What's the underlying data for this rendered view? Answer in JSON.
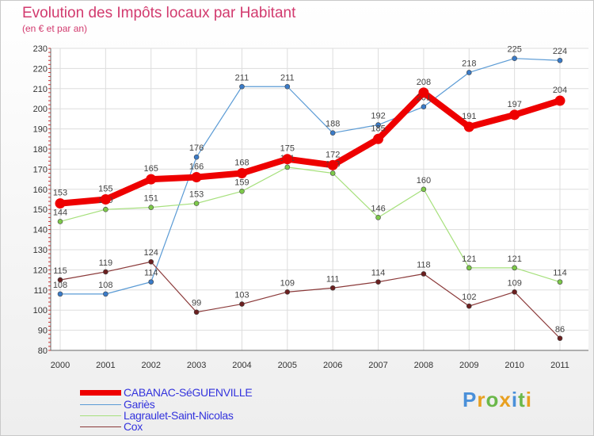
{
  "chart_data": {
    "type": "line",
    "title": "Evolution des Impôts locaux par Habitant",
    "subtitle": "(en € et par an)",
    "xlabel": "",
    "ylabel": "",
    "categories": [
      "2000",
      "2001",
      "2002",
      "2003",
      "2004",
      "2005",
      "2006",
      "2007",
      "2008",
      "2009",
      "2010",
      "2011"
    ],
    "ylim": [
      80,
      230
    ],
    "yticks": [
      80,
      90,
      100,
      110,
      120,
      130,
      140,
      150,
      160,
      170,
      180,
      190,
      200,
      210,
      220,
      230
    ],
    "grid": true,
    "series": [
      {
        "name": "Gariès",
        "color": "#5b9bd5",
        "marker": "#3a7bc8",
        "values": [
          108,
          108,
          114,
          176,
          211,
          211,
          188,
          192,
          201,
          218,
          225,
          224
        ]
      },
      {
        "name": "Lagraulet-Saint-Nicolas",
        "color": "#a6e07c",
        "marker": "#7dc94a",
        "values": [
          144,
          150,
          151,
          153,
          159,
          171,
          168,
          146,
          160,
          121,
          121,
          114
        ]
      },
      {
        "name": "Cox",
        "color": "#8b3a3a",
        "marker": "#6b1f1f",
        "values": [
          115,
          119,
          124,
          99,
          103,
          109,
          111,
          114,
          118,
          102,
          109,
          86
        ]
      },
      {
        "name": "CABANAC-SéGUENVILLE",
        "color": "#ee0000",
        "marker": "#ee0000",
        "bold": true,
        "values": [
          153,
          155,
          165,
          166,
          168,
          175,
          172,
          185,
          208,
          191,
          197,
          204
        ]
      }
    ],
    "legend": {
      "placement": "bottom-left",
      "entries": [
        "CABANAC-SéGUENVILLE",
        "Gariès",
        "Lagraulet-Saint-Nicolas",
        "Cox"
      ]
    }
  },
  "logo": {
    "text": "Proxiti"
  }
}
